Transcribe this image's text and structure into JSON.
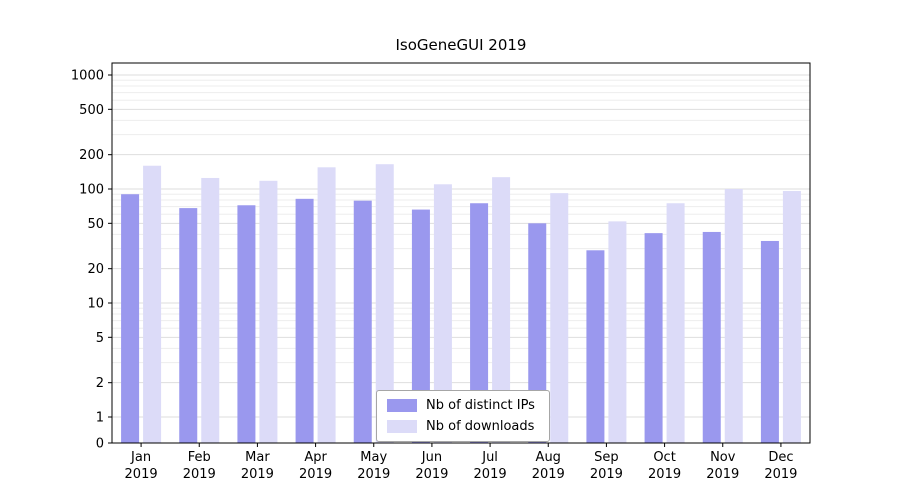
{
  "title": "IsoGeneGUI 2019",
  "chart_data": {
    "type": "bar",
    "title": "IsoGeneGUI 2019",
    "scale": "log",
    "months": [
      "Jan",
      "Feb",
      "Mar",
      "Apr",
      "May",
      "Jun",
      "Jul",
      "Aug",
      "Sep",
      "Oct",
      "Nov",
      "Dec"
    ],
    "year": "2019",
    "series": [
      {
        "name": "Nb of distinct IPs",
        "color": "#9a98ee",
        "values": [
          90,
          68,
          72,
          82,
          79,
          66,
          75,
          50,
          29,
          41,
          42,
          35
        ]
      },
      {
        "name": "Nb of downloads",
        "color": "#dcdbf8",
        "values": [
          160,
          125,
          118,
          155,
          165,
          110,
          127,
          92,
          52,
          75,
          100,
          96
        ]
      }
    ],
    "y_ticks": [
      0,
      1,
      2,
      5,
      10,
      20,
      50,
      100,
      200,
      500,
      1000
    ],
    "ylim": [
      0,
      1000
    ],
    "grid": "horizontal-log-minor",
    "legend_position": "bottom-center",
    "colors": {
      "axis": "#000000",
      "grid_major": "#dedede",
      "grid_minor": "#ededed",
      "text": "#000000",
      "background": "#ffffff"
    }
  }
}
